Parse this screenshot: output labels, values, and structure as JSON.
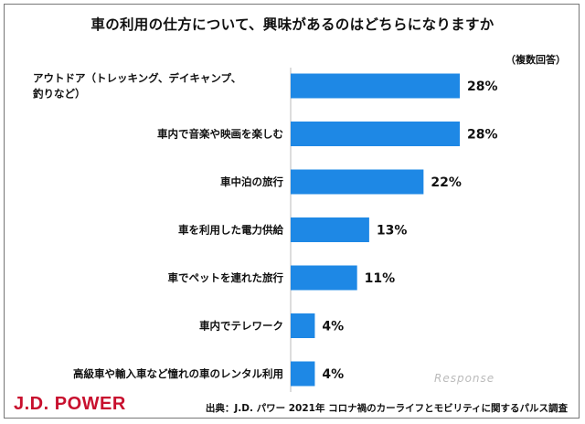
{
  "chart_data": {
    "type": "bar",
    "orientation": "horizontal",
    "title": "車の利用の仕方について、興味があるのはどちらになりますか",
    "note": "（複数回答）",
    "categories": [
      [
        "アウトドア（トレッキング、デイキャンプ、",
        "釣りなど）"
      ],
      [
        "車内で音楽や映画を楽しむ"
      ],
      [
        "車中泊の旅行"
      ],
      [
        "車を利用した電力供給"
      ],
      [
        "車でペットを連れた旅行"
      ],
      [
        "車内でテレワーク"
      ],
      [
        "高級車や輸入車など憧れの車のレンタル利用"
      ]
    ],
    "values": [
      28,
      28,
      22,
      13,
      11,
      4,
      4
    ],
    "value_suffix": "%",
    "xlim": [
      0,
      28
    ],
    "bar_color": "#1e88e5",
    "grid": false
  },
  "footer": {
    "logo": "J.D. POWER",
    "source": "出典：J.D. パワー 2021年 コロナ禍のカーライフとモビリティに関するパルス調査"
  },
  "watermark": "Response",
  "colors": {
    "logo": "#c8102e",
    "bar": "#1e88e5"
  }
}
